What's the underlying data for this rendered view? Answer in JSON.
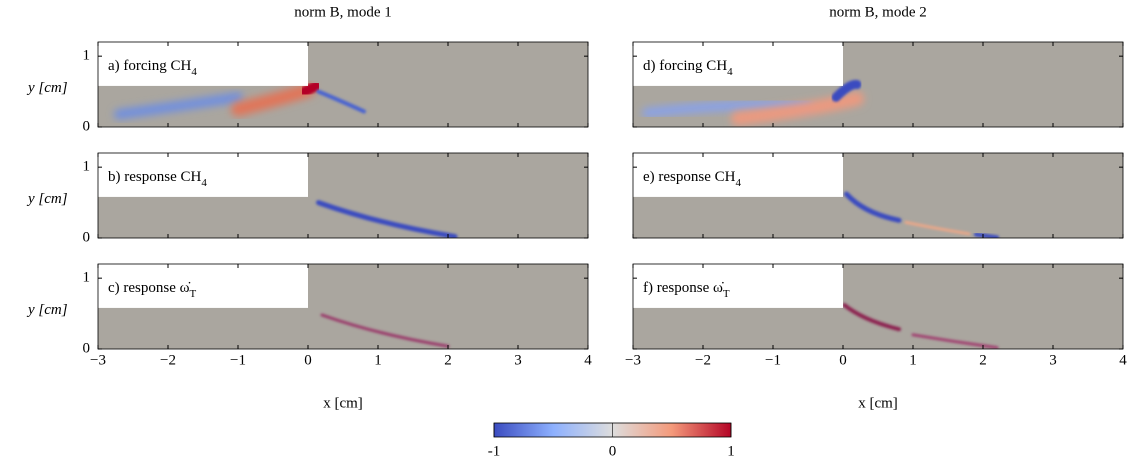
{
  "figure": {
    "column_titles": [
      "norm B, mode 1",
      "norm B, mode 2"
    ],
    "panels": [
      [
        {
          "label": "a) forcing CH",
          "sub": "4"
        },
        {
          "label": "b) response CH",
          "sub": "4"
        },
        {
          "label": "c) response ω̇",
          "sub": "T"
        }
      ],
      [
        {
          "label": "d) forcing CH",
          "sub": "4"
        },
        {
          "label": "e) response CH",
          "sub": "4"
        },
        {
          "label": "f) response ω̇",
          "sub": "T"
        }
      ]
    ],
    "xlabel": "x [cm]",
    "ylabel": "y [cm]",
    "xlim": [
      -3,
      4
    ],
    "ylim": [
      0,
      1.2
    ],
    "xticks": [
      {
        "value": -3,
        "label": "−3"
      },
      {
        "value": -2,
        "label": "−2"
      },
      {
        "value": -1,
        "label": "−1"
      },
      0,
      1,
      2,
      3,
      4
    ],
    "yticks": [
      0,
      1
    ],
    "colorbar": {
      "lim": [
        -1,
        1
      ],
      "ticks": [
        -1,
        0,
        1
      ]
    }
  }
}
